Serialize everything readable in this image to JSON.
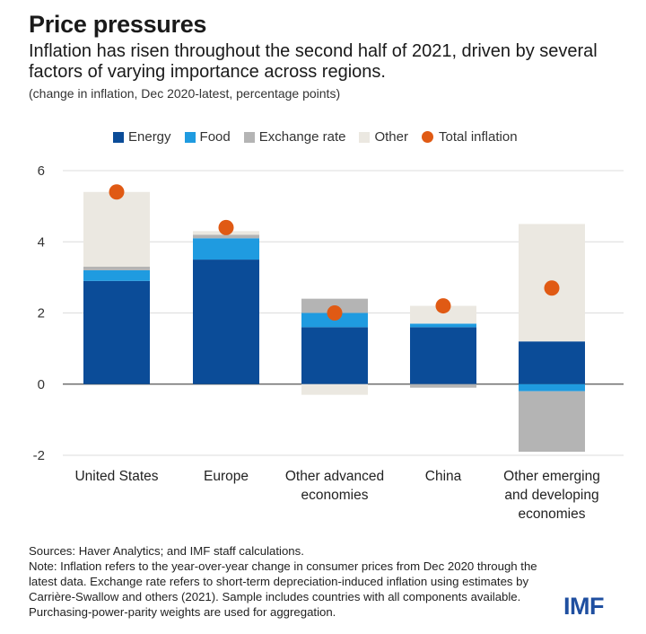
{
  "header": {
    "title": "Price pressures",
    "subtitle": "Inflation has risen throughout the second half of 2021, driven by several factors of varying importance across regions.",
    "unit": "(change in inflation, Dec 2020-latest, percentage points)"
  },
  "legend": [
    {
      "label": "Energy",
      "color": "#0b4c98",
      "shape": "square"
    },
    {
      "label": "Food",
      "color": "#1f9be0",
      "shape": "square"
    },
    {
      "label": "Exchange rate",
      "color": "#b4b4b4",
      "shape": "square"
    },
    {
      "label": "Other",
      "color": "#ebe8e1",
      "shape": "square"
    },
    {
      "label": "Total inflation",
      "color": "#e05a14",
      "shape": "circle"
    }
  ],
  "chart_data": {
    "type": "bar",
    "stacked": true,
    "categories": [
      [
        "United States"
      ],
      [
        "Europe"
      ],
      [
        "Other advanced",
        "economies"
      ],
      [
        "China"
      ],
      [
        "Other emerging",
        "and developing",
        "economies"
      ]
    ],
    "series": [
      {
        "name": "Energy",
        "color": "#0b4c98",
        "values": [
          2.9,
          3.5,
          1.6,
          1.6,
          1.2
        ]
      },
      {
        "name": "Food",
        "color": "#1f9be0",
        "values": [
          0.3,
          0.6,
          0.4,
          0.1,
          -0.2
        ]
      },
      {
        "name": "Exchange rate",
        "color": "#b4b4b4",
        "values": [
          0.1,
          0.1,
          0.4,
          -0.1,
          -1.7
        ]
      },
      {
        "name": "Other",
        "color": "#ebe8e1",
        "values": [
          2.1,
          0.1,
          -0.3,
          0.5,
          3.3
        ]
      }
    ],
    "total": {
      "name": "Total inflation",
      "color": "#e05a14",
      "values": [
        5.4,
        4.4,
        2.0,
        2.2,
        2.7
      ]
    },
    "yticks": [
      -2,
      0,
      2,
      4,
      6
    ],
    "ylim": [
      -2,
      6
    ],
    "grid": true,
    "legend_position": "top"
  },
  "notes": {
    "sources": "Sources: Haver Analytics; and IMF staff calculations.",
    "note": "Note: Inflation refers to the year-over-year change in consumer prices from Dec 2020 through the latest data. Exchange rate refers to short-term depreciation-induced inflation using estimates by Carrière-Swallow and others (2021). Sample includes countries with all components available. Purchasing-power-parity weights are used for aggregation."
  },
  "logo": "IMF"
}
